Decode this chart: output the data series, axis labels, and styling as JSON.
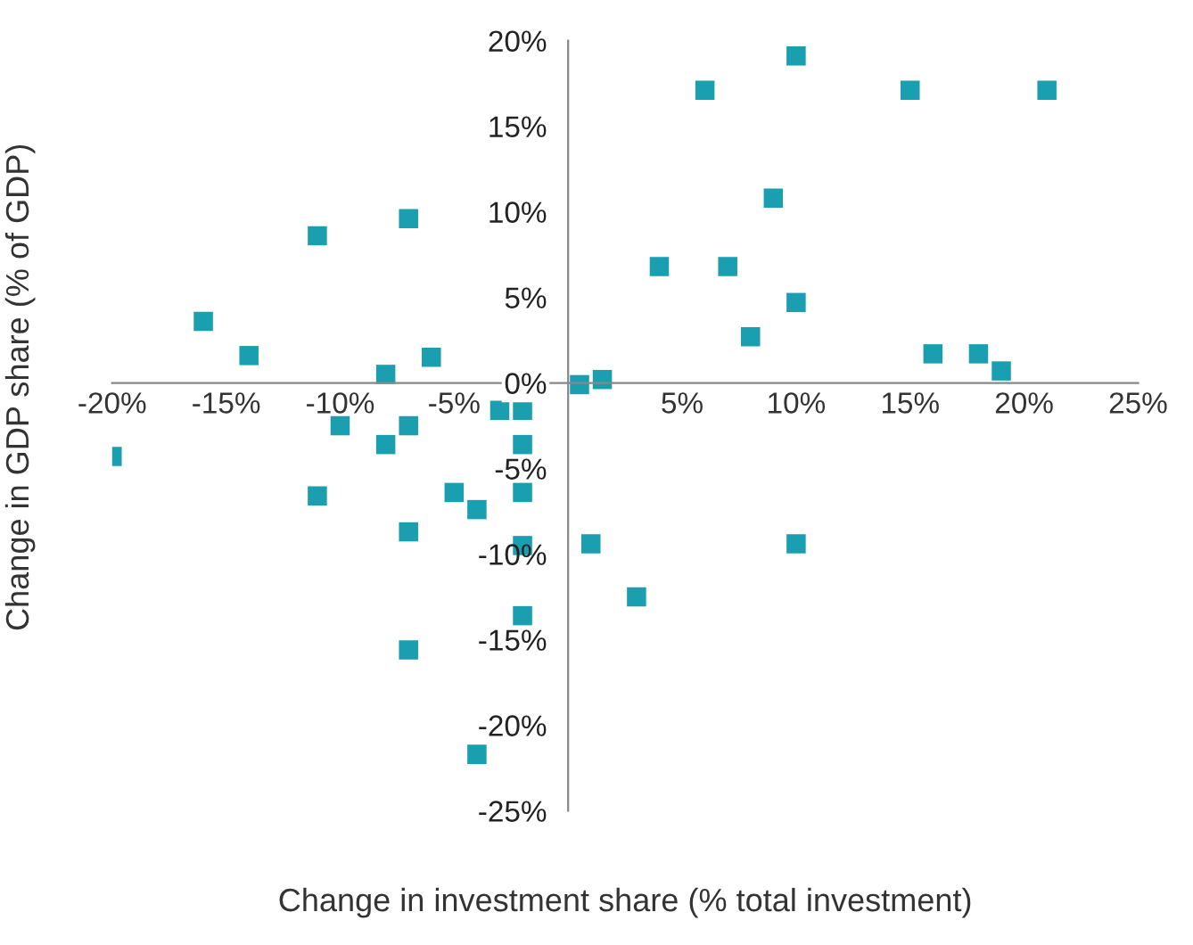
{
  "chart_data": {
    "type": "scatter",
    "xlabel": "Change in investment share (% total investment)",
    "ylabel": "Change in GDP share (% of GDP)",
    "x": [
      -20,
      -16,
      -14,
      -11,
      -11,
      -10,
      -8,
      -8,
      -7,
      -7,
      -7,
      -7,
      -6,
      -5,
      -4,
      -4,
      -3,
      -2,
      -2,
      -2,
      -2,
      -2,
      0.5,
      1.5,
      1,
      3,
      4,
      7,
      8,
      9,
      10,
      10,
      10,
      6,
      15,
      21,
      16,
      18,
      19
    ],
    "series": [
      {
        "color": "#1a9fb0",
        "values": [
          -4.3,
          3.6,
          1.6,
          8.6,
          -6.6,
          -2.5,
          0.5,
          -3.6,
          9.6,
          -2.5,
          -8.7,
          -15.6,
          1.5,
          -6.4,
          -7.4,
          -21.7,
          -1.6,
          -1.6,
          -3.6,
          -6.4,
          -9.5,
          -13.6,
          -0.1,
          0.2,
          -9.4,
          -12.5,
          6.8,
          6.8,
          2.7,
          10.8,
          19.1,
          4.7,
          -9.4,
          17.1,
          17.1,
          17.1,
          1.7,
          1.7,
          0.7
        ]
      }
    ],
    "marker": "square",
    "xlim": [
      -20,
      25
    ],
    "ylim": [
      -25,
      20
    ],
    "xticks": [
      {
        "value": -20,
        "label": "-20%"
      },
      {
        "value": -15,
        "label": "-15%"
      },
      {
        "value": -10,
        "label": "-10%"
      },
      {
        "value": -5,
        "label": "-5%"
      },
      {
        "value": 5,
        "label": "5%"
      },
      {
        "value": 10,
        "label": "10%"
      },
      {
        "value": 15,
        "label": "15%"
      },
      {
        "value": 20,
        "label": "20%"
      },
      {
        "value": 25,
        "label": "25%"
      }
    ],
    "yticks": [
      {
        "value": -25,
        "label": "-25%"
      },
      {
        "value": -20,
        "label": "-20%"
      },
      {
        "value": -15,
        "label": "-15%"
      },
      {
        "value": -10,
        "label": "-10%"
      },
      {
        "value": -5,
        "label": "-5%"
      },
      {
        "value": 0,
        "label": "0%"
      },
      {
        "value": 5,
        "label": "5%"
      },
      {
        "value": 10,
        "label": "10%"
      },
      {
        "value": 15,
        "label": "15%"
      },
      {
        "value": 20,
        "label": "20%"
      }
    ],
    "grid": false
  }
}
